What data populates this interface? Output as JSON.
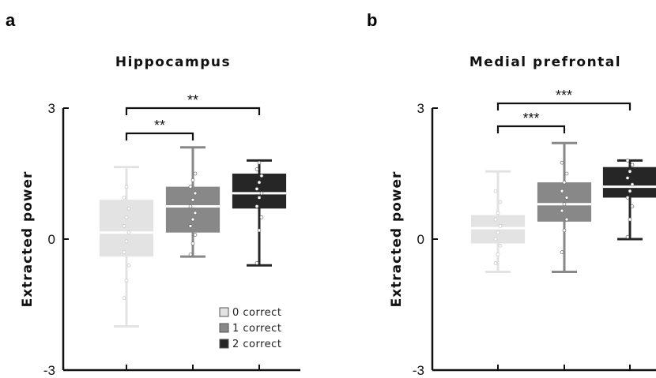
{
  "figure": {
    "panels": [
      {
        "letter": "a",
        "title": "Hippocampus"
      },
      {
        "letter": "b",
        "title": "Medial prefrontal"
      }
    ],
    "legend": [
      "0 correct",
      "1 correct",
      "2 correct"
    ]
  },
  "chart_data": [
    {
      "type": "box",
      "panel": "a",
      "title": "Hippocampus",
      "ylabel": "Extracted power",
      "xlabel": "",
      "ylim": [
        -3,
        3
      ],
      "yticks": [
        -3,
        0,
        3
      ],
      "categories": [
        "0 correct",
        "1 correct",
        "2 correct"
      ],
      "colors": [
        "#e3e3e3",
        "#888888",
        "#262626"
      ],
      "boxes": [
        {
          "min": -2.0,
          "q1": -0.4,
          "median": 0.15,
          "q3": 0.9,
          "max": 1.65
        },
        {
          "min": -0.4,
          "q1": 0.15,
          "median": 0.75,
          "q3": 1.2,
          "max": 2.1
        },
        {
          "min": -0.6,
          "q1": 0.7,
          "median": 1.05,
          "q3": 1.5,
          "max": 1.8
        }
      ],
      "points": [
        [
          -1.35,
          -0.95,
          -0.6,
          -0.3,
          -0.05,
          0.15,
          0.3,
          0.5,
          0.7,
          0.95,
          1.2
        ],
        [
          -0.35,
          -0.1,
          0.1,
          0.3,
          0.45,
          0.6,
          0.75,
          0.9,
          1.05,
          1.2,
          1.35,
          1.5
        ],
        [
          -0.55,
          0.2,
          0.5,
          0.75,
          0.95,
          1.05,
          1.15,
          1.3,
          1.45,
          1.6,
          1.75
        ]
      ],
      "significance": [
        {
          "from": 0,
          "to": 1,
          "label": "**"
        },
        {
          "from": 0,
          "to": 2,
          "label": "**"
        }
      ]
    },
    {
      "type": "box",
      "panel": "b",
      "title": "Medial prefrontal",
      "ylabel": "Extracted power",
      "xlabel": "",
      "ylim": [
        -3,
        3
      ],
      "yticks": [
        -3,
        0,
        3
      ],
      "categories": [
        "0 correct",
        "1 correct",
        "2 correct"
      ],
      "colors": [
        "#e3e3e3",
        "#888888",
        "#262626"
      ],
      "boxes": [
        {
          "min": -0.75,
          "q1": -0.1,
          "median": 0.25,
          "q3": 0.55,
          "max": 1.55
        },
        {
          "min": -0.75,
          "q1": 0.4,
          "median": 0.8,
          "q3": 1.3,
          "max": 2.2
        },
        {
          "min": 0.0,
          "q1": 0.95,
          "median": 1.2,
          "q3": 1.65,
          "max": 1.8
        }
      ],
      "points": [
        [
          -0.55,
          -0.35,
          -0.15,
          0.0,
          0.15,
          0.3,
          0.45,
          0.6,
          0.85,
          1.1
        ],
        [
          -0.3,
          0.2,
          0.45,
          0.65,
          0.8,
          0.95,
          1.1,
          1.3,
          1.5,
          1.75
        ],
        [
          0.05,
          0.45,
          0.75,
          0.95,
          1.1,
          1.25,
          1.4,
          1.55,
          1.7,
          1.8
        ]
      ],
      "significance": [
        {
          "from": 0,
          "to": 1,
          "label": "***"
        },
        {
          "from": 0,
          "to": 2,
          "label": "***"
        }
      ]
    }
  ]
}
